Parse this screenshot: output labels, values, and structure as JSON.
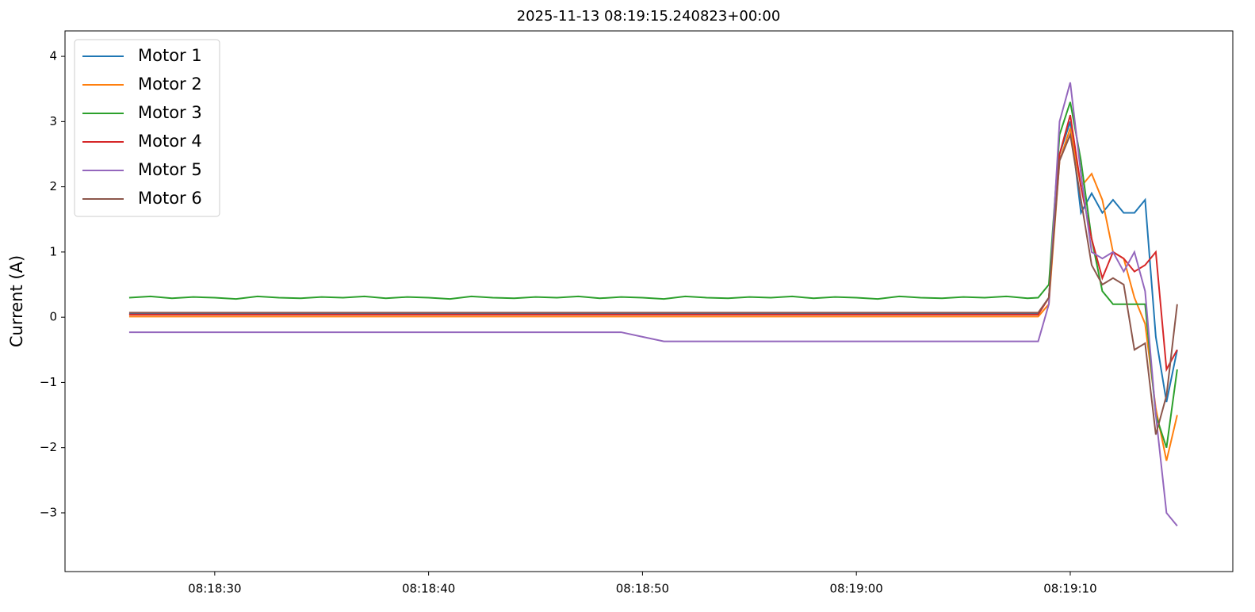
{
  "chart_data": {
    "type": "line",
    "title": "2025-11-13 08:19:15.240823+00:00",
    "y_label": "Current (A)",
    "x": [
      "08:18:26",
      "08:18:27",
      "08:18:28",
      "08:18:29",
      "08:18:30",
      "08:18:31",
      "08:18:32",
      "08:18:33",
      "08:18:34",
      "08:18:35",
      "08:18:36",
      "08:18:37",
      "08:18:38",
      "08:18:39",
      "08:18:40",
      "08:18:41",
      "08:18:42",
      "08:18:43",
      "08:18:44",
      "08:18:45",
      "08:18:46",
      "08:18:47",
      "08:18:48",
      "08:18:49",
      "08:18:50",
      "08:18:51",
      "08:18:52",
      "08:18:53",
      "08:18:54",
      "08:18:55",
      "08:18:56",
      "08:18:57",
      "08:18:58",
      "08:18:59",
      "08:19:00",
      "08:19:01",
      "08:19:02",
      "08:19:03",
      "08:19:04",
      "08:19:05",
      "08:19:06",
      "08:19:07",
      "08:19:08",
      "08:19:08.5",
      "08:19:09.0",
      "08:19:09.5",
      "08:19:10.0",
      "08:19:10.5",
      "08:19:11.0",
      "08:19:11.5",
      "08:19:12.0",
      "08:19:12.5",
      "08:19:13.0",
      "08:19:13.5",
      "08:19:14.0",
      "08:19:14.5",
      "08:19:15.0"
    ],
    "series": [
      {
        "name": "Motor 1",
        "color": "#1f77b4",
        "values": [
          0.05,
          0.05,
          0.05,
          0.05,
          0.05,
          0.05,
          0.05,
          0.05,
          0.05,
          0.05,
          0.05,
          0.05,
          0.05,
          0.05,
          0.05,
          0.05,
          0.05,
          0.05,
          0.05,
          0.05,
          0.05,
          0.05,
          0.05,
          0.05,
          0.05,
          0.05,
          0.05,
          0.05,
          0.05,
          0.05,
          0.05,
          0.05,
          0.05,
          0.05,
          0.05,
          0.05,
          0.05,
          0.05,
          0.05,
          0.05,
          0.05,
          0.05,
          0.05,
          0.05,
          0.3,
          2.5,
          3.0,
          1.6,
          1.9,
          1.6,
          1.8,
          1.6,
          1.6,
          1.8,
          -0.3,
          -1.3,
          -0.5
        ]
      },
      {
        "name": "Motor 2",
        "color": "#ff7f0e",
        "values": [
          0.01,
          0.01,
          0.01,
          0.01,
          0.01,
          0.01,
          0.01,
          0.01,
          0.01,
          0.01,
          0.01,
          0.01,
          0.01,
          0.01,
          0.01,
          0.01,
          0.01,
          0.01,
          0.01,
          0.01,
          0.01,
          0.01,
          0.01,
          0.01,
          0.01,
          0.01,
          0.01,
          0.01,
          0.01,
          0.01,
          0.01,
          0.01,
          0.01,
          0.01,
          0.01,
          0.01,
          0.01,
          0.01,
          0.01,
          0.01,
          0.01,
          0.01,
          0.01,
          0.01,
          0.2,
          2.4,
          2.9,
          2.0,
          2.2,
          1.8,
          1.0,
          0.9,
          0.3,
          -0.1,
          -1.4,
          -2.2,
          -1.5
        ]
      },
      {
        "name": "Motor 3",
        "color": "#2ca02c",
        "values": [
          0.3,
          0.32,
          0.29,
          0.31,
          0.3,
          0.28,
          0.32,
          0.3,
          0.29,
          0.31,
          0.3,
          0.32,
          0.29,
          0.31,
          0.3,
          0.28,
          0.32,
          0.3,
          0.29,
          0.31,
          0.3,
          0.32,
          0.29,
          0.31,
          0.3,
          0.28,
          0.32,
          0.3,
          0.29,
          0.31,
          0.3,
          0.32,
          0.29,
          0.31,
          0.3,
          0.28,
          0.32,
          0.3,
          0.29,
          0.31,
          0.3,
          0.32,
          0.29,
          0.3,
          0.5,
          2.8,
          3.3,
          2.4,
          1.2,
          0.4,
          0.2,
          0.2,
          0.2,
          0.2,
          -1.5,
          -2.0,
          -0.8
        ]
      },
      {
        "name": "Motor 4",
        "color": "#d62728",
        "values": [
          0.04,
          0.04,
          0.04,
          0.04,
          0.04,
          0.04,
          0.04,
          0.04,
          0.04,
          0.04,
          0.04,
          0.04,
          0.04,
          0.04,
          0.04,
          0.04,
          0.04,
          0.04,
          0.04,
          0.04,
          0.04,
          0.04,
          0.04,
          0.04,
          0.04,
          0.04,
          0.04,
          0.04,
          0.04,
          0.04,
          0.04,
          0.04,
          0.04,
          0.04,
          0.04,
          0.04,
          0.04,
          0.04,
          0.04,
          0.04,
          0.04,
          0.04,
          0.04,
          0.04,
          0.3,
          2.5,
          3.1,
          2.0,
          1.2,
          0.6,
          1.0,
          0.9,
          0.7,
          0.8,
          1.0,
          -0.8,
          -0.5
        ]
      },
      {
        "name": "Motor 5",
        "color": "#9467bd",
        "values": [
          -0.23,
          -0.23,
          -0.23,
          -0.23,
          -0.23,
          -0.23,
          -0.23,
          -0.23,
          -0.23,
          -0.23,
          -0.23,
          -0.23,
          -0.23,
          -0.23,
          -0.23,
          -0.23,
          -0.23,
          -0.23,
          -0.23,
          -0.23,
          -0.23,
          -0.23,
          -0.23,
          -0.23,
          -0.3,
          -0.37,
          -0.37,
          -0.37,
          -0.37,
          -0.37,
          -0.37,
          -0.37,
          -0.37,
          -0.37,
          -0.37,
          -0.37,
          -0.37,
          -0.37,
          -0.37,
          -0.37,
          -0.37,
          -0.37,
          -0.37,
          -0.37,
          0.2,
          3.0,
          3.6,
          2.2,
          1.0,
          0.9,
          1.0,
          0.7,
          1.0,
          0.4,
          -1.5,
          -3.0,
          -3.2
        ]
      },
      {
        "name": "Motor 6",
        "color": "#8c564b",
        "values": [
          0.07,
          0.07,
          0.07,
          0.07,
          0.07,
          0.07,
          0.07,
          0.07,
          0.07,
          0.07,
          0.07,
          0.07,
          0.07,
          0.07,
          0.07,
          0.07,
          0.07,
          0.07,
          0.07,
          0.07,
          0.07,
          0.07,
          0.07,
          0.07,
          0.07,
          0.07,
          0.07,
          0.07,
          0.07,
          0.07,
          0.07,
          0.07,
          0.07,
          0.07,
          0.07,
          0.07,
          0.07,
          0.07,
          0.07,
          0.07,
          0.07,
          0.07,
          0.07,
          0.07,
          0.3,
          2.4,
          2.8,
          1.8,
          0.8,
          0.5,
          0.6,
          0.5,
          -0.5,
          -0.4,
          -1.8,
          -1.2,
          0.2
        ]
      }
    ],
    "xlim": [
      "08:18:23.0",
      "08:19:17.6"
    ],
    "xticks": [
      "08:18:30",
      "08:18:40",
      "08:18:50",
      "08:19:00",
      "08:19:10"
    ],
    "ylim": [
      -3.9,
      4.39
    ],
    "yticks": [
      {
        "value": -3,
        "label": "−3"
      },
      {
        "value": -2,
        "label": "−2"
      },
      {
        "value": -1,
        "label": "−1"
      },
      0,
      1,
      2,
      3,
      4
    ],
    "legend": "upper left",
    "grid": false
  }
}
